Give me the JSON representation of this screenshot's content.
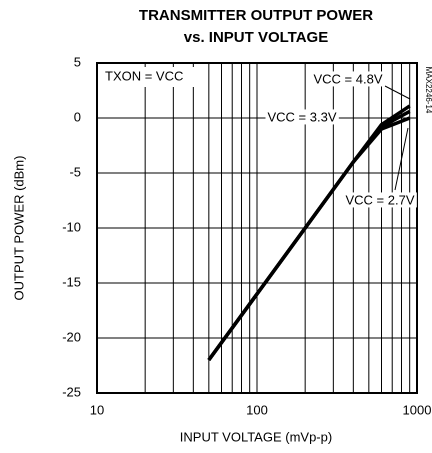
{
  "chart_data": {
    "type": "line",
    "title": [
      "TRANSMITTER OUTPUT POWER",
      "vs. INPUT VOLTAGE"
    ],
    "xlabel": "INPUT VOLTAGE (mVp-p)",
    "ylabel": "OUTPUT POWER (dBm)",
    "annotation": "TXON = VCC",
    "side_label": "MAX2246-14",
    "x": [
      50,
      100,
      200,
      400,
      600,
      800,
      900
    ],
    "series": [
      {
        "name": "VCC = 4.8V",
        "color": "#000000",
        "values": [
          -22,
          -16,
          -10,
          -4,
          -0.6,
          0.6,
          1.1
        ]
      },
      {
        "name": "VCC = 3.3V",
        "color": "#000000",
        "values": [
          -22,
          -16,
          -10,
          -4,
          -0.8,
          0.2,
          0.6
        ]
      },
      {
        "name": "VCC = 2.7V",
        "color": "#000000",
        "values": [
          -22,
          -16,
          -10,
          -4,
          -1,
          -0.3,
          0
        ]
      }
    ],
    "xlog": true,
    "xlim": [
      10,
      1000
    ],
    "xticks": [
      10,
      100,
      1000
    ],
    "xminor": [
      20,
      30,
      40,
      50,
      60,
      70,
      80,
      90,
      200,
      300,
      400,
      500,
      600,
      700,
      800,
      900
    ],
    "ylim": [
      -25,
      5
    ],
    "yticks": [
      -25,
      -20,
      -15,
      -10,
      -5,
      0,
      5
    ],
    "grid": true
  }
}
